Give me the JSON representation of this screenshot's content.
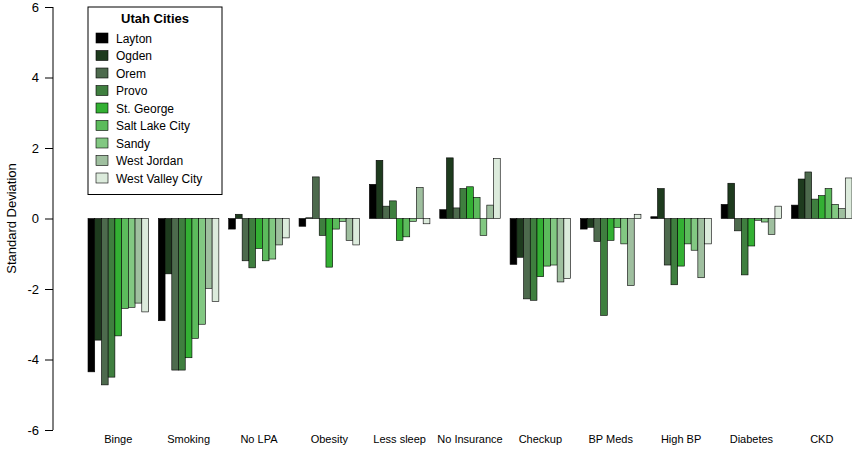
{
  "chart_data": {
    "type": "bar",
    "y_label": "Standard Deviation",
    "legend_title": "Utah Cities",
    "legend": "upper left",
    "categories": [
      "Binge",
      "Smoking",
      "No LPA",
      "Obesity",
      "Less sleep",
      "No Insurance",
      "Checkup",
      "BP Meds",
      "High BP",
      "Diabetes",
      "CKD"
    ],
    "series": [
      {
        "name": "Layton",
        "color": "#000000",
        "values": [
          -4.35,
          -2.9,
          -0.3,
          -0.22,
          0.97,
          0.25,
          -1.3,
          -0.3,
          0.05,
          0.4,
          0.38
        ]
      },
      {
        "name": "Ogden",
        "color": "#1e3b1e",
        "values": [
          -3.45,
          -1.57,
          0.12,
          0.02,
          1.65,
          1.72,
          -1.1,
          -0.25,
          0.85,
          1.0,
          1.12
        ]
      },
      {
        "name": "Orem",
        "color": "#4d6a4d",
        "values": [
          -4.72,
          -4.3,
          -1.2,
          1.18,
          0.35,
          0.3,
          -2.28,
          -0.65,
          -1.32,
          -0.35,
          1.32
        ]
      },
      {
        "name": "Provo",
        "color": "#3f7f3f",
        "values": [
          -4.5,
          -4.3,
          -1.4,
          -0.48,
          0.5,
          0.85,
          -2.32,
          -2.75,
          -1.88,
          -1.6,
          0.55
        ]
      },
      {
        "name": "St. George",
        "color": "#33b033",
        "values": [
          -3.33,
          -3.95,
          -0.85,
          -1.38,
          -0.62,
          0.9,
          -1.65,
          -0.62,
          -1.35,
          -0.78,
          0.65
        ]
      },
      {
        "name": "Salt Lake City",
        "color": "#5cbb5c",
        "values": [
          -2.55,
          -3.4,
          -1.2,
          -0.3,
          -0.52,
          0.6,
          -1.35,
          -0.25,
          -0.72,
          -0.05,
          0.85
        ]
      },
      {
        "name": "Sandy",
        "color": "#82c882",
        "values": [
          -2.52,
          -3.0,
          -1.15,
          -0.08,
          -0.08,
          -0.48,
          -1.32,
          -0.72,
          -0.9,
          -0.1,
          0.4
        ]
      },
      {
        "name": "West Jordan",
        "color": "#9fbf9f",
        "values": [
          -2.4,
          -1.98,
          -0.75,
          -0.62,
          0.88,
          0.38,
          -1.8,
          -1.9,
          -1.68,
          -0.45,
          0.28
        ]
      },
      {
        "name": "West Valley City",
        "color": "#dcebdc",
        "values": [
          -2.65,
          -2.35,
          -0.55,
          -0.75,
          -0.15,
          1.7,
          -1.7,
          0.12,
          -0.72,
          0.35,
          1.15
        ]
      }
    ],
    "ylim": [
      -6,
      6
    ],
    "yticks": [
      -6,
      -4,
      -2,
      0,
      2,
      4,
      6
    ],
    "grid": false
  }
}
